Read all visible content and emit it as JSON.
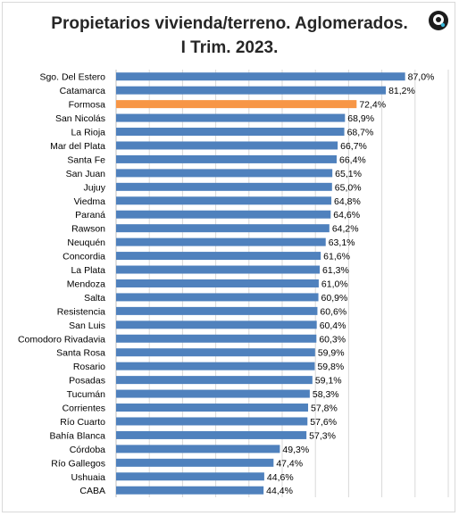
{
  "chart_data": {
    "type": "bar",
    "orientation": "horizontal",
    "title_lines": [
      "Propietarios vivienda/terreno. Aglomerados.",
      "I Trim. 2023."
    ],
    "categories": [
      "Sgo. Del Estero",
      "Catamarca",
      "Formosa",
      "San Nicolás",
      "La Rioja",
      "Mar del Plata",
      "Santa Fe",
      "San Juan",
      "Jujuy",
      "Viedma",
      "Paraná",
      "Rawson",
      "Neuquén",
      "Concordia",
      "La Plata",
      "Mendoza",
      "Salta",
      "Resistencia",
      "San Luis",
      "Comodoro Rivadavia",
      "Santa Rosa",
      "Rosario",
      "Posadas",
      "Tucumán",
      "Corrientes",
      "Río Cuarto",
      "Bahía Blanca",
      "Córdoba",
      "Río Gallegos",
      "Ushuaia",
      "CABA"
    ],
    "values": [
      87.0,
      81.2,
      72.4,
      68.9,
      68.7,
      66.7,
      66.4,
      65.1,
      65.0,
      64.8,
      64.6,
      64.2,
      63.1,
      61.6,
      61.3,
      61.0,
      60.9,
      60.6,
      60.4,
      60.3,
      59.9,
      59.8,
      59.1,
      58.3,
      57.8,
      57.6,
      57.3,
      49.3,
      47.4,
      44.6,
      44.4
    ],
    "value_labels": [
      "87,0%",
      "81,2%",
      "72,4%",
      "68,9%",
      "68,7%",
      "66,7%",
      "66,4%",
      "65,1%",
      "65,0%",
      "64,8%",
      "64,6%",
      "64,2%",
      "63,1%",
      "61,6%",
      "61,3%",
      "61,0%",
      "60,9%",
      "60,6%",
      "60,4%",
      "60,3%",
      "59,9%",
      "59,8%",
      "59,1%",
      "58,3%",
      "57,8%",
      "57,6%",
      "57,3%",
      "49,3%",
      "47,4%",
      "44,6%",
      "44,4%"
    ],
    "highlight": "Formosa",
    "colors": {
      "bar": "#4f81bd",
      "highlight": "#f79646",
      "grid": "#d9d9d9"
    },
    "xlim": [
      0,
      100
    ],
    "grid": true,
    "legend": "none"
  },
  "logo": {
    "icon": "circle-logo-icon"
  }
}
